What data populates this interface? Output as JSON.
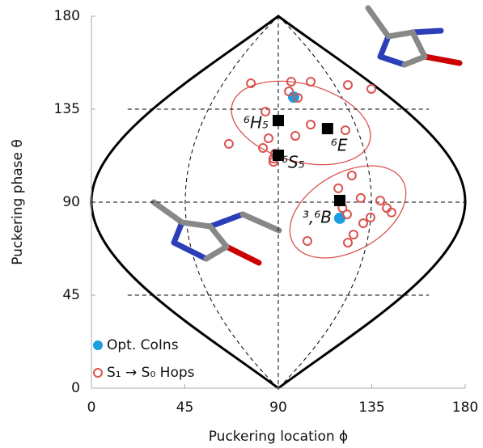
{
  "chart_data": {
    "type": "scatter",
    "xlabel": "Puckering location ϕ",
    "ylabel": "Puckering phase θ",
    "xlim": [
      0,
      180
    ],
    "ylim": [
      0,
      180
    ],
    "xticks": [
      0,
      45,
      90,
      135,
      180
    ],
    "yticks": [
      0,
      45,
      90,
      135,
      180
    ],
    "grid": true,
    "legend": "lower left",
    "series": [
      {
        "name": "Opt. CoIns",
        "color": "#1a9ee0",
        "marker": "filled-circle",
        "x": [
          97.4,
          119.6
        ],
        "y": [
          140.8,
          82.2
        ]
      },
      {
        "name": "S₁ → S₀ Hops",
        "color": "#d9534f",
        "marker": "open-circle",
        "x": [
          76.8,
          96.2,
          105.6,
          123.5,
          134.8,
          95.1,
          99.4,
          83.8,
          105.6,
          122.3,
          98.2,
          85.3,
          66.2,
          82.6,
          88.4,
          87.6,
          87.6,
          125.4,
          118.9,
          129.7,
          139.1,
          120.9,
          142.2,
          144.5,
          123.1,
          134.4,
          130.9,
          126.2,
          123.5,
          104
        ],
        "y": [
          147.5,
          148.3,
          148.3,
          146.7,
          144.8,
          143.6,
          140.5,
          133.8,
          127.5,
          124.8,
          122.1,
          120.9,
          118.2,
          116.2,
          113.5,
          111.1,
          109.5,
          102.9,
          96.7,
          92,
          90.8,
          87.2,
          87.2,
          85,
          84.1,
          82.6,
          79.8,
          74.3,
          70.4,
          71.2
        ]
      },
      {
        "color": "#000000",
        "marker": "square",
        "x": [
          90,
          113.7,
          90,
          119.6
        ],
        "y": [
          129.5,
          125.6,
          112.7,
          90.8
        ],
        "labels": [
          "⁶H₅",
          "⁶E",
          "⁶S₅",
          "³,⁶B"
        ]
      }
    ]
  }
}
